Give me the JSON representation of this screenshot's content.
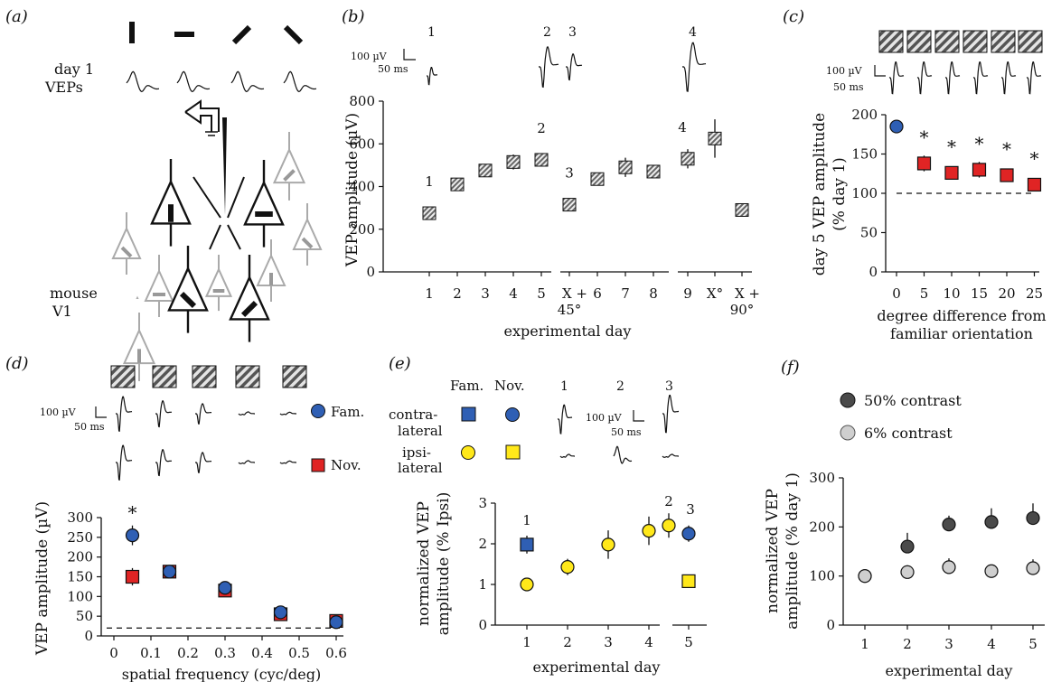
{
  "panels": {
    "a": {
      "label": "(a)",
      "row1": "day 1",
      "row2": "VEPs",
      "mouse1": "mouse",
      "mouse2": "V1"
    },
    "b": {
      "label": "(b)",
      "scale_uv": "100 µV",
      "scale_ms": "50 ms",
      "trace_labels": [
        "1",
        "2",
        "3",
        "4"
      ]
    },
    "c": {
      "label": "(c)",
      "scale_uv": "100 µV",
      "scale_ms": "50 ms"
    },
    "d": {
      "label": "(d)",
      "scale_uv": "100 µV",
      "scale_ms": "50 ms",
      "legend_fam": "Fam.",
      "legend_nov": "Nov."
    },
    "e": {
      "label": "(e)",
      "scale_uv": "100 µV",
      "scale_ms": "50 ms",
      "col_fam": "Fam.",
      "col_nov": "Nov.",
      "row_contra1": "contra-",
      "row_contra2": "lateral",
      "row_ipsi1": "ipsi-",
      "row_ipsi2": "lateral",
      "trace_labels": [
        "1",
        "2",
        "3"
      ]
    },
    "f": {
      "label": "(f)",
      "legend_50": "50% contrast",
      "legend_6": "6% contrast"
    }
  },
  "colors": {
    "fam_blue": "#2f5fb4",
    "nov_red": "#e02424",
    "yellow": "#ffe81a",
    "gray_dark": "#4a4a4a",
    "gray_light": "#cfcfcf"
  },
  "chart_data": [
    {
      "panel": "b",
      "type": "scatter",
      "xlabel": "experimental day",
      "ylabel": "VEP amplitude (µV)",
      "categories": [
        "1",
        "2",
        "3",
        "4",
        "5",
        "X + 45°",
        "6",
        "7",
        "8",
        "9",
        "X°",
        "X + 90°"
      ],
      "tick_labels": [
        "1",
        "2",
        "3",
        "4",
        "5",
        "X +",
        "45°",
        "6",
        "7",
        "8",
        "9",
        "X°",
        "X +",
        "90°"
      ],
      "values": [
        275,
        410,
        475,
        515,
        525,
        315,
        435,
        490,
        470,
        530,
        625,
        290
      ],
      "errors": [
        20,
        20,
        25,
        35,
        20,
        30,
        30,
        45,
        25,
        45,
        90,
        25
      ],
      "point_labels": [
        {
          "index": 0,
          "text": "1"
        },
        {
          "index": 4,
          "text": "2"
        },
        {
          "index": 5,
          "text": "3"
        },
        {
          "index": 9,
          "text": "4"
        }
      ],
      "ylim": [
        0,
        800
      ],
      "yticks": [
        "0",
        "200",
        "400",
        "600",
        "800"
      ]
    },
    {
      "panel": "c",
      "type": "scatter",
      "xlabel": "degree difference from",
      "xlabel2": "familiar orientation",
      "ylabel": "day 5 VEP amplitude",
      "ylabel2": "(% day 1)",
      "x": [
        0,
        5,
        10,
        15,
        20,
        25
      ],
      "xticks": [
        "0",
        "5",
        "10",
        "15",
        "20",
        "25"
      ],
      "values": [
        185,
        138,
        126,
        130,
        123,
        111
      ],
      "errors": [
        8,
        10,
        8,
        10,
        8,
        8
      ],
      "significant": [
        "",
        "*",
        "*",
        "*",
        "*",
        "*"
      ],
      "reference_line": 100,
      "ylim": [
        0,
        200
      ],
      "yticks": [
        "0",
        "50",
        "100",
        "150",
        "200"
      ]
    },
    {
      "panel": "d",
      "type": "scatter",
      "xlabel": "spatial frequency (cyc/deg)",
      "ylabel": "VEP amplitude (µV)",
      "x": [
        0.05,
        0.15,
        0.3,
        0.45,
        0.6
      ],
      "xticks": [
        "0",
        "0.1",
        "0.2",
        "0.3",
        "0.4",
        "0.5",
        "0.6"
      ],
      "series": [
        {
          "name": "Fam.",
          "values": [
            255,
            163,
            122,
            60,
            35
          ],
          "errors": [
            25,
            12,
            10,
            10,
            8
          ]
        },
        {
          "name": "Nov.",
          "values": [
            150,
            163,
            115,
            55,
            38
          ],
          "errors": [
            22,
            12,
            10,
            8,
            8
          ]
        }
      ],
      "significant": [
        "*",
        "",
        "",
        "",
        ""
      ],
      "reference_line": 20,
      "ylim": [
        0,
        300
      ],
      "yticks": [
        "0",
        "50",
        "100",
        "150",
        "200",
        "250",
        "300"
      ]
    },
    {
      "panel": "e",
      "type": "scatter",
      "xlabel": "experimental day",
      "ylabel": "normalized VEP",
      "ylabel2": "amplitude (% Ipsi)",
      "categories": [
        "1",
        "2",
        "3",
        "4",
        "5"
      ],
      "series": [
        {
          "name": "",
          "days": [
            1,
            5
          ],
          "values": [
            1.98,
            1.08
          ],
          "errors": [
            0.22,
            0.12
          ]
        },
        {
          "name": "",
          "days": [
            1,
            2,
            3,
            4,
            5
          ],
          "values": [
            1.0,
            1.43,
            1.98,
            2.32,
            2.25
          ],
          "errors": [
            0.06,
            0.2,
            0.35,
            0.35,
            0.2
          ]
        },
        {
          "name": "",
          "days": [
            4.8
          ],
          "values": [
            2.45
          ],
          "errors": [
            0.3
          ]
        }
      ],
      "point_labels": [
        "1",
        "2",
        "3"
      ],
      "ylim": [
        0,
        3
      ],
      "yticks": [
        "0",
        "1",
        "2",
        "3"
      ]
    },
    {
      "panel": "f",
      "type": "scatter",
      "xlabel": "experimental day",
      "ylabel": "normalized VEP",
      "ylabel2": "amplitude (% day 1)",
      "categories": [
        "1",
        "2",
        "3",
        "4",
        "5"
      ],
      "series": [
        {
          "name": "50% contrast",
          "values": [
            100,
            160,
            205,
            210,
            218
          ],
          "errors": [
            10,
            28,
            18,
            28,
            30
          ]
        },
        {
          "name": "6% contrast",
          "values": [
            100,
            108,
            118,
            110,
            116
          ],
          "errors": [
            10,
            14,
            18,
            10,
            18
          ]
        }
      ],
      "ylim": [
        0,
        300
      ],
      "yticks": [
        "0",
        "100",
        "200",
        "300"
      ]
    }
  ]
}
